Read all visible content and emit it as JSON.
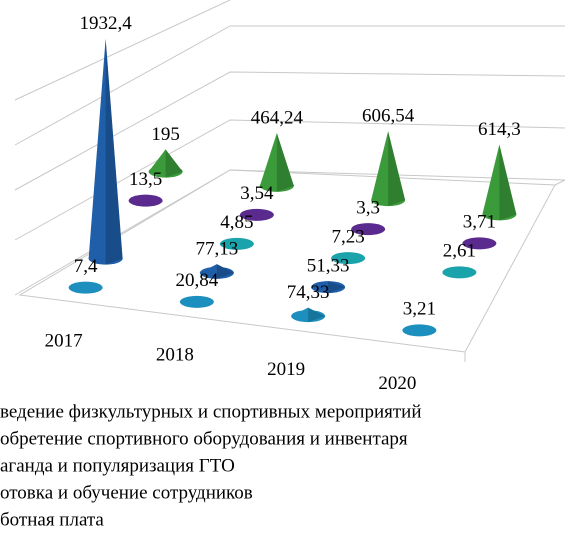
{
  "chart_data": {
    "type": "cone3d",
    "categories": [
      "2017",
      "2018",
      "2019",
      "2020"
    ],
    "series": [
      {
        "name": "ведение физкультурных и спортивных мероприятий",
        "color": "#1d8fbf",
        "values": [
          7.4,
          20.84,
          74.33,
          3.21
        ],
        "value_labels": [
          "7,4",
          "20,84",
          "74,33",
          "3,21"
        ]
      },
      {
        "name": "обретение спортивного оборудования и инвентаря",
        "color": "#1f5ea8",
        "values": [
          1932.4,
          77.13,
          51.33,
          null
        ],
        "value_labels": [
          "1932,4",
          "77,13",
          "51,33",
          null
        ]
      },
      {
        "name": "аганда и популяризация ГТО",
        "color": "#1aa3aa",
        "values": [
          null,
          4.85,
          7.23,
          2.61
        ],
        "value_labels": [
          null,
          "4,85",
          "7,23",
          "2,61"
        ]
      },
      {
        "name": "отовка и обучение сотрудников",
        "color": "#5a2a8e",
        "values": [
          13.5,
          3.54,
          3.3,
          3.71
        ],
        "value_labels": [
          "13,5",
          "3,54",
          "3,3",
          "3,71"
        ]
      },
      {
        "name": "ботная плата",
        "color": "#3b9b3b",
        "values": [
          195,
          464.24,
          606.54,
          614.3
        ],
        "value_labels": [
          "195",
          "464,24",
          "606,54",
          "614,3"
        ]
      }
    ]
  }
}
